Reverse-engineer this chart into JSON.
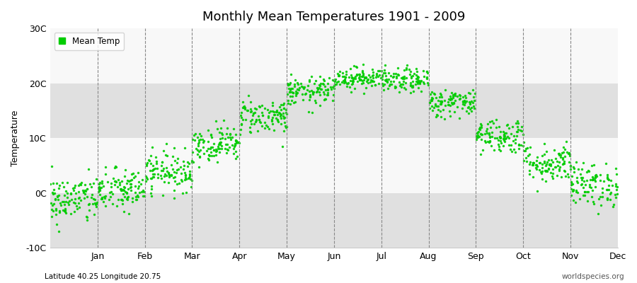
{
  "title": "Monthly Mean Temperatures 1901 - 2009",
  "ylabel": "Temperature",
  "xlabel_labels": [
    "Jan",
    "Feb",
    "Mar",
    "Apr",
    "May",
    "Jun",
    "Jul",
    "Aug",
    "Sep",
    "Oct",
    "Nov",
    "Dec"
  ],
  "subtitle": "Latitude 40.25 Longitude 20.75",
  "watermark": "worldspecies.org",
  "ylim": [
    -10,
    30
  ],
  "yticks": [
    -10,
    0,
    10,
    20,
    30
  ],
  "ytick_labels": [
    "-10C",
    "0C",
    "10C",
    "20C",
    "30C"
  ],
  "dot_color": "#00CC00",
  "dot_size": 6,
  "legend_label": "Mean Temp",
  "background_color": "#FFFFFF",
  "plot_bg_color": "#F0F0F0",
  "band_color_dark": "#E0E0E0",
  "band_color_light": "#F8F8F8",
  "monthly_means": [
    -1.2,
    0.5,
    4.0,
    9.0,
    14.0,
    18.5,
    21.0,
    20.5,
    16.5,
    10.5,
    5.5,
    1.5
  ],
  "monthly_std": [
    2.2,
    2.0,
    1.8,
    1.6,
    1.6,
    1.3,
    1.0,
    1.1,
    1.3,
    1.6,
    1.8,
    2.0
  ],
  "n_years": 109,
  "seed": 42
}
